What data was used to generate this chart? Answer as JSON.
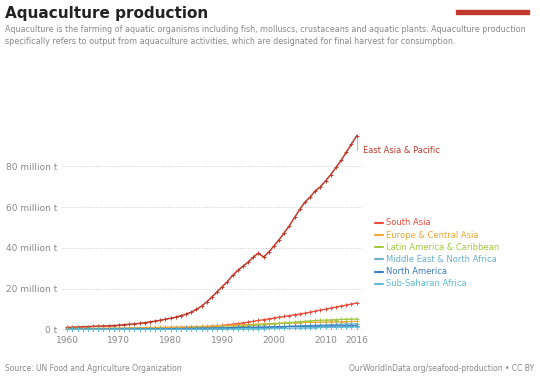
{
  "title": "Aquaculture production",
  "subtitle": "Aquaculture is the farming of aquatic organisms including fish, molluscs, crustaceans and aquatic plants. Aquaculture production\nspecifically refers to output from aquaculture activities, which are designated for final harvest for consumption.",
  "source_left": "Source: UN Food and Agriculture Organization",
  "source_right": "OurWorldInData.org/seafood-production • CC BY",
  "years": [
    1960,
    1961,
    1962,
    1963,
    1964,
    1965,
    1966,
    1967,
    1968,
    1969,
    1970,
    1971,
    1972,
    1973,
    1974,
    1975,
    1976,
    1977,
    1978,
    1979,
    1980,
    1981,
    1982,
    1983,
    1984,
    1985,
    1986,
    1987,
    1988,
    1989,
    1990,
    1991,
    1992,
    1993,
    1994,
    1995,
    1996,
    1997,
    1998,
    1999,
    2000,
    2001,
    2002,
    2003,
    2004,
    2005,
    2006,
    2007,
    2008,
    2009,
    2010,
    2011,
    2012,
    2013,
    2014,
    2015,
    2016
  ],
  "series": {
    "East Asia & Pacific": {
      "color": "#c0392b",
      "values": [
        1.0,
        1.1,
        1.2,
        1.3,
        1.4,
        1.5,
        1.6,
        1.7,
        1.8,
        1.9,
        2.1,
        2.3,
        2.5,
        2.7,
        3.0,
        3.3,
        3.7,
        4.1,
        4.5,
        5.0,
        5.5,
        6.0,
        6.8,
        7.5,
        8.5,
        9.8,
        11.5,
        13.5,
        16.0,
        18.5,
        21.0,
        23.5,
        26.5,
        29.0,
        31.0,
        33.0,
        35.5,
        37.5,
        35.5,
        38.0,
        41.0,
        44.0,
        47.5,
        51.0,
        55.0,
        59.0,
        62.5,
        65.0,
        68.0,
        70.0,
        73.0,
        76.0,
        79.5,
        83.0,
        87.0,
        91.0,
        95.0
      ]
    },
    "South Asia": {
      "color": "#e74c3c",
      "values": [
        0.1,
        0.1,
        0.1,
        0.15,
        0.15,
        0.2,
        0.2,
        0.2,
        0.25,
        0.25,
        0.3,
        0.3,
        0.35,
        0.35,
        0.4,
        0.45,
        0.5,
        0.55,
        0.6,
        0.65,
        0.7,
        0.75,
        0.8,
        0.9,
        1.0,
        1.1,
        1.2,
        1.35,
        1.5,
        1.7,
        2.0,
        2.3,
        2.6,
        2.9,
        3.2,
        3.6,
        4.0,
        4.4,
        4.8,
        5.2,
        5.6,
        6.0,
        6.4,
        6.8,
        7.2,
        7.6,
        8.0,
        8.5,
        9.0,
        9.5,
        10.0,
        10.5,
        11.0,
        11.5,
        12.0,
        12.5,
        13.0
      ]
    },
    "Europe & Central Asia": {
      "color": "#e8a838",
      "values": [
        0.5,
        0.52,
        0.54,
        0.56,
        0.58,
        0.6,
        0.62,
        0.65,
        0.68,
        0.72,
        0.75,
        0.78,
        0.82,
        0.85,
        0.88,
        0.92,
        0.95,
        1.0,
        1.05,
        1.1,
        1.15,
        1.2,
        1.25,
        1.3,
        1.35,
        1.4,
        1.5,
        1.6,
        1.7,
        1.8,
        1.9,
        2.0,
        2.1,
        2.2,
        2.3,
        2.4,
        2.5,
        2.6,
        2.7,
        2.8,
        2.9,
        3.0,
        3.1,
        3.2,
        3.3,
        3.4,
        3.5,
        3.55,
        3.6,
        3.6,
        3.65,
        3.7,
        3.75,
        3.8,
        3.85,
        3.9,
        4.0
      ]
    },
    "Latin America & Caribbean": {
      "color": "#a3c940",
      "values": [
        0.05,
        0.06,
        0.07,
        0.07,
        0.08,
        0.08,
        0.09,
        0.1,
        0.1,
        0.11,
        0.12,
        0.13,
        0.14,
        0.15,
        0.16,
        0.18,
        0.2,
        0.22,
        0.25,
        0.28,
        0.3,
        0.35,
        0.4,
        0.45,
        0.5,
        0.6,
        0.7,
        0.8,
        0.9,
        1.0,
        1.1,
        1.2,
        1.3,
        1.4,
        1.6,
        1.8,
        2.0,
        2.2,
        2.4,
        2.6,
        2.8,
        3.0,
        3.2,
        3.4,
        3.6,
        3.8,
        4.0,
        4.2,
        4.4,
        4.5,
        4.6,
        4.7,
        4.8,
        4.9,
        5.0,
        5.1,
        5.2
      ]
    },
    "Middle East & North Africa": {
      "color": "#6ab0c8",
      "values": [
        0.02,
        0.02,
        0.03,
        0.03,
        0.03,
        0.04,
        0.04,
        0.05,
        0.05,
        0.06,
        0.06,
        0.07,
        0.07,
        0.08,
        0.09,
        0.1,
        0.11,
        0.12,
        0.13,
        0.14,
        0.15,
        0.17,
        0.19,
        0.21,
        0.24,
        0.27,
        0.3,
        0.34,
        0.38,
        0.43,
        0.48,
        0.53,
        0.58,
        0.63,
        0.7,
        0.78,
        0.86,
        0.95,
        1.05,
        1.15,
        1.25,
        1.35,
        1.45,
        1.55,
        1.65,
        1.75,
        1.85,
        1.95,
        2.05,
        2.15,
        2.25,
        2.35,
        2.45,
        2.55,
        2.65,
        2.75,
        2.85
      ]
    },
    "North America": {
      "color": "#3a7abf",
      "values": [
        0.1,
        0.11,
        0.11,
        0.12,
        0.12,
        0.13,
        0.14,
        0.15,
        0.16,
        0.17,
        0.18,
        0.19,
        0.2,
        0.22,
        0.24,
        0.26,
        0.28,
        0.3,
        0.33,
        0.36,
        0.38,
        0.41,
        0.44,
        0.47,
        0.5,
        0.55,
        0.6,
        0.65,
        0.7,
        0.75,
        0.8,
        0.85,
        0.9,
        0.95,
        1.0,
        1.05,
        1.1,
        1.15,
        1.2,
        1.25,
        1.3,
        1.35,
        1.4,
        1.45,
        1.5,
        1.55,
        1.6,
        1.65,
        1.7,
        1.72,
        1.74,
        1.76,
        1.78,
        1.8,
        1.82,
        1.84,
        1.86
      ]
    },
    "Sub-Saharan Africa": {
      "color": "#5bbcd4",
      "values": [
        0.01,
        0.01,
        0.01,
        0.01,
        0.01,
        0.02,
        0.02,
        0.02,
        0.02,
        0.02,
        0.03,
        0.03,
        0.03,
        0.04,
        0.04,
        0.04,
        0.05,
        0.05,
        0.06,
        0.06,
        0.07,
        0.07,
        0.08,
        0.09,
        0.1,
        0.11,
        0.12,
        0.14,
        0.16,
        0.18,
        0.2,
        0.22,
        0.24,
        0.27,
        0.3,
        0.33,
        0.36,
        0.4,
        0.44,
        0.48,
        0.52,
        0.56,
        0.6,
        0.65,
        0.7,
        0.75,
        0.8,
        0.85,
        0.9,
        0.95,
        1.0,
        1.05,
        1.1,
        1.15,
        1.2,
        1.25,
        1.3
      ]
    }
  },
  "yticks": [
    0,
    20,
    40,
    60,
    80
  ],
  "ytick_labels": [
    "0 t",
    "20 million t",
    "40 million t",
    "60 million t",
    "80 million t"
  ],
  "xticks": [
    1960,
    1970,
    1980,
    1990,
    2000,
    2010,
    2016
  ],
  "xlim": [
    1959,
    2017
  ],
  "ylim": [
    -1,
    100
  ],
  "bg_color": "#ffffff",
  "grid_color": "#cccccc",
  "logo_bg": "#1d3557"
}
